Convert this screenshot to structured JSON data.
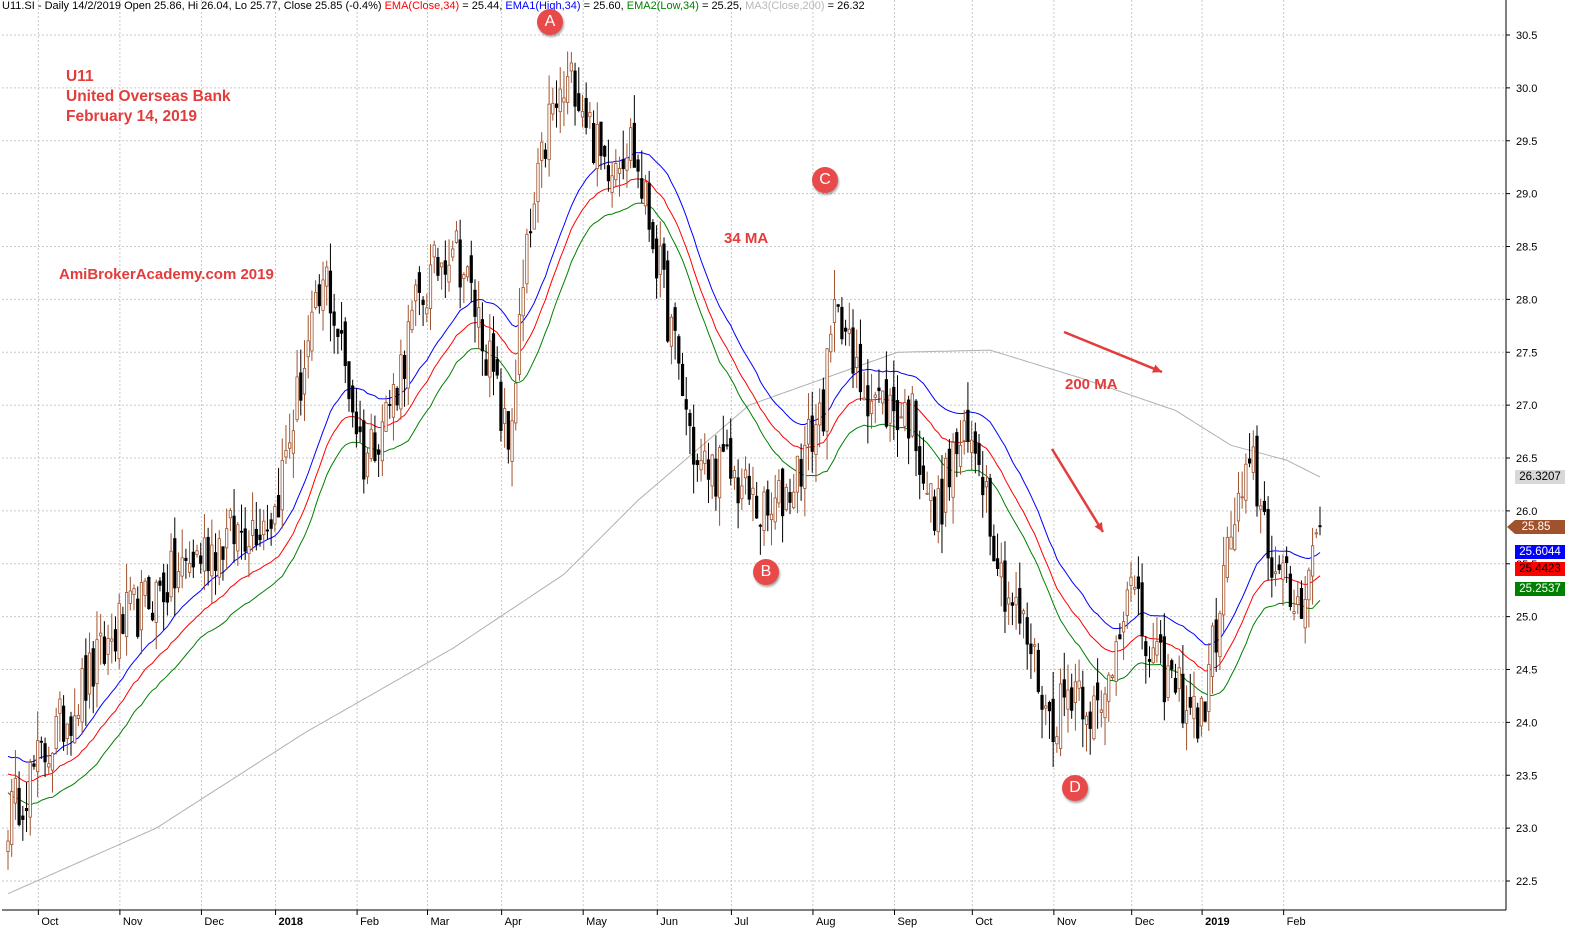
{
  "header": {
    "prefix": "U11.SI - Daily 14/2/2019 Open 25.86, Hi 26.04, Lo 25.77, Close 25.85 (-0.4%) ",
    "ema_close_label": "EMA(Close,34)",
    "ema_close_value": " = 25.44, ",
    "ema_high_label": "EMA1(High,34)",
    "ema_high_value": " = 25.60, ",
    "ema_low_label": "EMA2(Low,34)",
    "ema_low_value": " = 25.25, ",
    "ma_label": "MA3(Close,200)",
    "ma_value": " = 26.32"
  },
  "annotations": {
    "ticker": "U11",
    "company": "United Overseas Bank",
    "date": "February 14, 2019",
    "watermark": "AmiBrokerAcademy.com  2019",
    "ma34_label": "34 MA",
    "ma200_label": "200 MA",
    "markers": [
      "A",
      "B",
      "C",
      "D"
    ]
  },
  "price_tags": {
    "ma200": "26.3207",
    "close": "25.85",
    "ema_high": "25.6044",
    "ema_close": "25.4423",
    "ema_low": "25.2537"
  },
  "colors": {
    "up": "#a0522d",
    "down": "#000000",
    "ema_close": "#ff0000",
    "ema_high": "#0000ff",
    "ema_low": "#008000",
    "ma200": "#b0b0b0",
    "annotation": "#e23c3c"
  },
  "chart_data": {
    "type": "candlestick",
    "ylim": [
      22.2,
      30.7
    ],
    "y_ticks": [
      "22.5",
      "23.0",
      "23.5",
      "24.0",
      "24.5",
      "25.0",
      "25.5",
      "26.0",
      "26.5",
      "27.0",
      "27.5",
      "28.0",
      "28.5",
      "29.0",
      "29.5",
      "30.0",
      "30.5"
    ],
    "x_labels": [
      "Oct",
      "Nov",
      "Dec",
      "2018",
      "Feb",
      "Mar",
      "Apr",
      "May",
      "Jun",
      "Jul",
      "Aug",
      "Sep",
      "Oct",
      "Nov",
      "Dec",
      "2019",
      "Feb"
    ],
    "x_label_bars": [
      9,
      31,
      53,
      73,
      95,
      114,
      134,
      156,
      176,
      196,
      218,
      240,
      261,
      283,
      304,
      323,
      345
    ],
    "bold_x_labels": [
      "2018",
      "2019"
    ],
    "bar_count": 355,
    "key_points": [
      [
        0,
        23.1
      ],
      [
        8,
        23.6
      ],
      [
        30,
        24.9
      ],
      [
        52,
        25.6
      ],
      [
        72,
        26.0
      ],
      [
        80,
        27.4
      ],
      [
        86,
        28.2
      ],
      [
        96,
        26.5
      ],
      [
        104,
        27.1
      ],
      [
        110,
        27.9
      ],
      [
        120,
        28.6
      ],
      [
        128,
        27.7
      ],
      [
        135,
        26.6
      ],
      [
        140,
        28.4
      ],
      [
        146,
        29.7
      ],
      [
        153,
        30.1
      ],
      [
        160,
        29.3
      ],
      [
        168,
        29.5
      ],
      [
        174,
        28.6
      ],
      [
        180,
        27.5
      ],
      [
        186,
        26.4
      ],
      [
        194,
        26.4
      ],
      [
        205,
        25.9
      ],
      [
        212,
        26.3
      ],
      [
        220,
        27.0
      ],
      [
        224,
        28.1
      ],
      [
        228,
        27.3
      ],
      [
        236,
        27.0
      ],
      [
        244,
        26.9
      ],
      [
        250,
        25.9
      ],
      [
        256,
        26.6
      ],
      [
        262,
        26.6
      ],
      [
        268,
        25.4
      ],
      [
        276,
        24.7
      ],
      [
        281,
        24.0
      ],
      [
        288,
        24.4
      ],
      [
        295,
        24.0
      ],
      [
        302,
        25.4
      ],
      [
        308,
        24.6
      ],
      [
        316,
        24.3
      ],
      [
        322,
        24.0
      ],
      [
        330,
        25.8
      ],
      [
        336,
        26.4
      ],
      [
        342,
        25.4
      ],
      [
        348,
        25.1
      ],
      [
        352,
        25.6
      ],
      [
        354,
        25.85
      ]
    ],
    "ma200_points": [
      [
        0,
        22.38
      ],
      [
        40,
        23.0
      ],
      [
        80,
        23.9
      ],
      [
        120,
        24.7
      ],
      [
        150,
        25.4
      ],
      [
        170,
        26.1
      ],
      [
        200,
        27.0
      ],
      [
        240,
        27.5
      ],
      [
        265,
        27.52
      ],
      [
        290,
        27.25
      ],
      [
        315,
        26.95
      ],
      [
        330,
        26.62
      ],
      [
        345,
        26.48
      ],
      [
        354,
        26.32
      ]
    ],
    "last_values": {
      "open": 25.86,
      "high": 26.04,
      "low": 25.77,
      "close": 25.85,
      "ema_close_34": 25.44,
      "ema_high_34": 25.6,
      "ema_low_34": 25.25,
      "ma_close_200": 26.32
    }
  }
}
